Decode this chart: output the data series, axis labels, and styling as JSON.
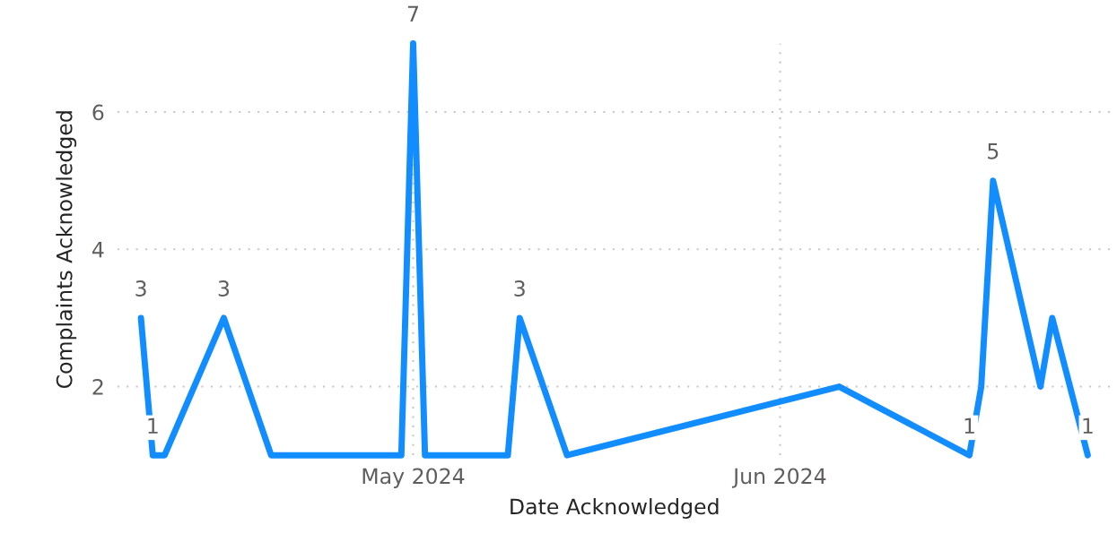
{
  "chart_data": {
    "type": "line",
    "xlabel": "Date Acknowledged",
    "ylabel": "Complaints Acknowledged",
    "x": [
      "2024-04-08",
      "2024-04-09",
      "2024-04-10",
      "2024-04-15",
      "2024-04-19",
      "2024-04-30",
      "2024-05-01",
      "2024-05-02",
      "2024-05-09",
      "2024-05-10",
      "2024-05-14",
      "2024-06-06",
      "2024-06-17",
      "2024-06-18",
      "2024-06-19",
      "2024-06-23",
      "2024-06-24",
      "2024-06-27"
    ],
    "series": [
      {
        "color": "#118dff",
        "values": [
          3,
          1,
          1,
          3,
          1,
          1,
          7,
          1,
          1,
          3,
          1,
          2,
          1,
          2,
          5,
          2,
          3,
          1
        ],
        "value_labels": [
          "3",
          "1",
          null,
          "3",
          null,
          null,
          "7",
          null,
          null,
          "3",
          null,
          null,
          "1",
          null,
          "5",
          null,
          null,
          "1"
        ]
      }
    ],
    "xlim": [
      "2024-04-06",
      "2024-06-29"
    ],
    "xticks": [
      {
        "value": "2024-05-01",
        "label": "May 2024"
      },
      {
        "value": "2024-06-01",
        "label": "Jun 2024"
      }
    ],
    "ylim": [
      1,
      7
    ],
    "yticks": [
      2,
      4,
      6
    ],
    "grid": true,
    "legend": false,
    "marker": "none",
    "line_style": "solid"
  }
}
